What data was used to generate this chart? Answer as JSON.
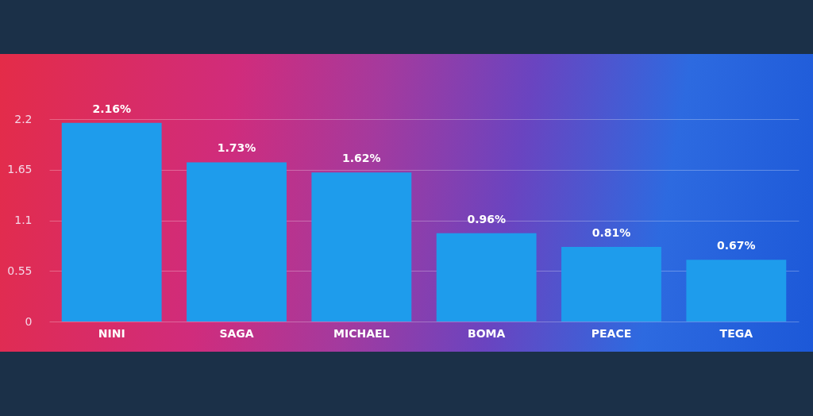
{
  "chart_data": {
    "type": "bar",
    "categories": [
      "NINI",
      "SAGA",
      "MICHAEL",
      "BOMA",
      "PEACE",
      "TEGA"
    ],
    "values": [
      2.16,
      1.73,
      1.62,
      0.96,
      0.81,
      0.67
    ],
    "value_labels": [
      "2.16%",
      "1.73%",
      "1.62%",
      "0.96%",
      "0.81%",
      "0.67%"
    ],
    "color": "#1e9cec",
    "ylim": [
      0,
      2.2
    ],
    "yticks": [
      0,
      0.55,
      1.1,
      1.65,
      2.2
    ],
    "grid": "y"
  }
}
